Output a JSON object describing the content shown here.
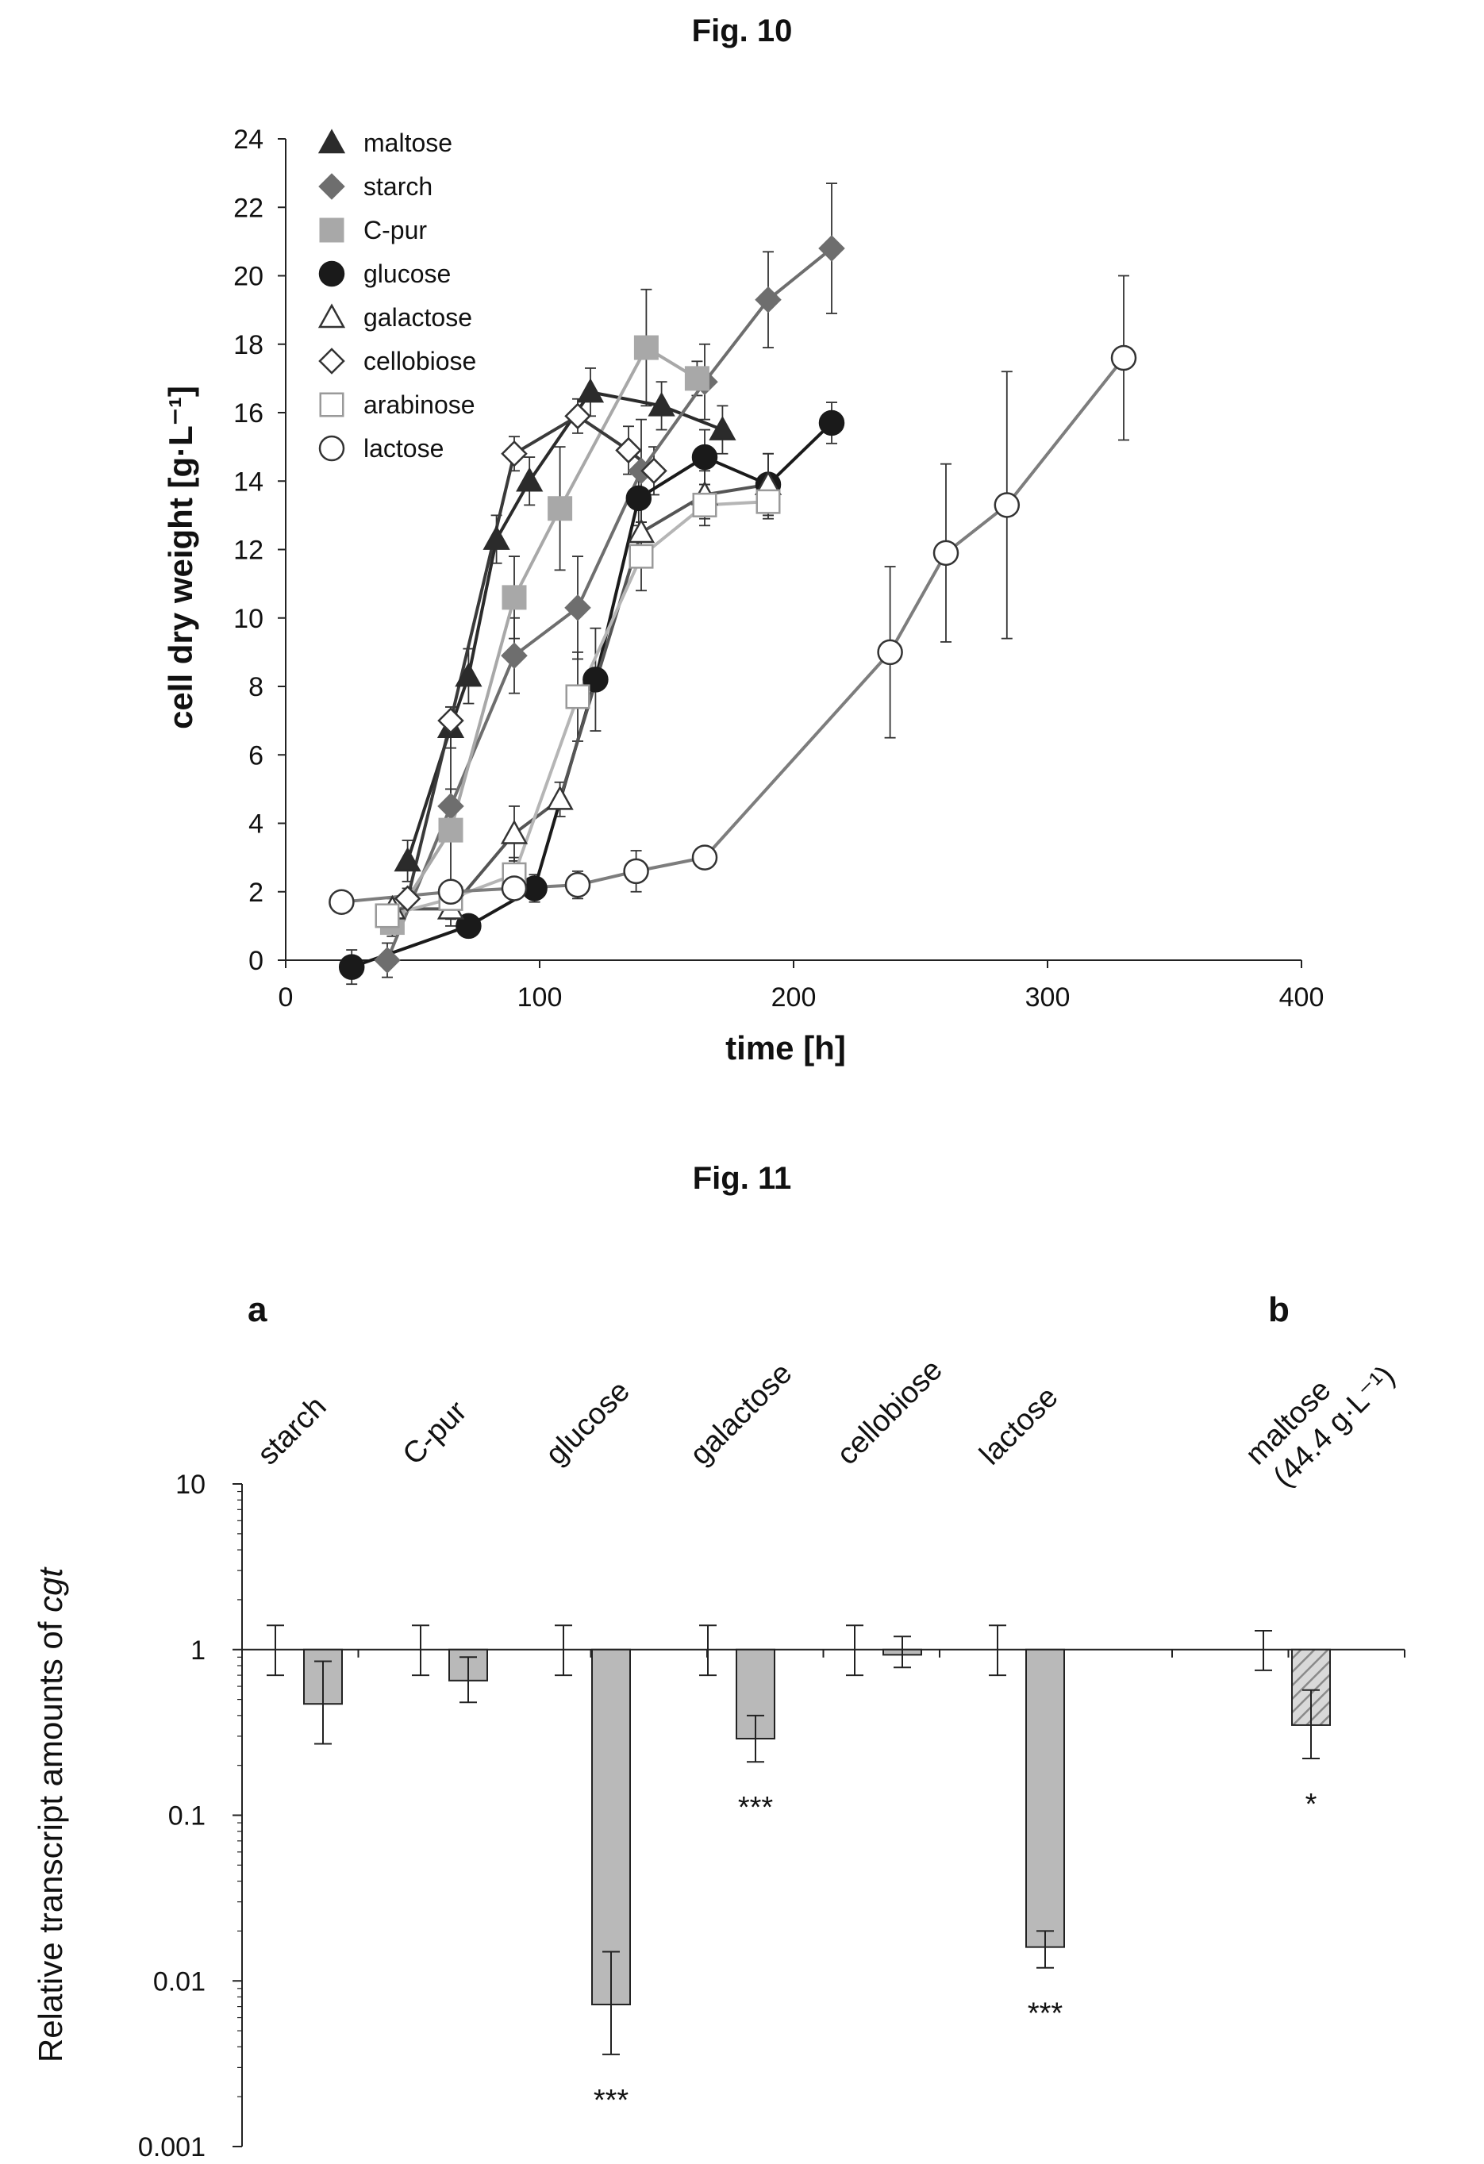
{
  "figures": [
    {
      "label": "Fig. 10"
    },
    {
      "label": "Fig. 11"
    }
  ],
  "chart_data": [
    {
      "type": "line",
      "title": "Fig. 10",
      "xlabel": "time [h]",
      "ylabel": "cell dry weight [g·L⁻¹]",
      "xlim": [
        0,
        400
      ],
      "ylim": [
        0,
        24
      ],
      "xticks": [
        0,
        100,
        200,
        300,
        400
      ],
      "yticks": [
        0,
        2,
        4,
        6,
        8,
        10,
        12,
        14,
        16,
        18,
        20,
        22,
        24
      ],
      "legend_position": "top-left",
      "series": [
        {
          "name": "maltose",
          "marker": "triangle-filled",
          "color": "#2b2b2b",
          "x": [
            48,
            65,
            72,
            83,
            96,
            120,
            148,
            172
          ],
          "y": [
            2.9,
            6.8,
            8.3,
            12.3,
            14.0,
            16.6,
            16.2,
            15.5
          ],
          "err": [
            0.6,
            0.6,
            0.8,
            0.7,
            0.7,
            0.7,
            0.7,
            0.7
          ]
        },
        {
          "name": "starch",
          "marker": "diamond-filled",
          "color": "#6e6e6e",
          "x": [
            40,
            65,
            90,
            115,
            140,
            165,
            190,
            215
          ],
          "y": [
            0.0,
            4.5,
            8.9,
            10.3,
            14.3,
            16.9,
            19.3,
            20.8
          ],
          "err": [
            0.5,
            0.5,
            1.1,
            1.5,
            1.5,
            1.1,
            1.4,
            1.9
          ]
        },
        {
          "name": "C-pur",
          "marker": "square-filled",
          "color": "#a8a8a8",
          "x": [
            42,
            65,
            90,
            108,
            142,
            162
          ],
          "y": [
            1.1,
            3.8,
            10.6,
            13.2,
            17.9,
            17.0
          ],
          "err": [
            0.4,
            2.8,
            1.2,
            1.8,
            1.7,
            0.5
          ]
        },
        {
          "name": "glucose",
          "marker": "circle-filled",
          "color": "#1a1a1a",
          "x": [
            26,
            72,
            98,
            122,
            139,
            165,
            190,
            215
          ],
          "y": [
            -0.2,
            1.0,
            2.1,
            8.2,
            13.5,
            14.7,
            13.9,
            15.7
          ],
          "err": [
            0.5,
            0.3,
            0.4,
            1.5,
            0.8,
            0.8,
            0.9,
            0.6
          ]
        },
        {
          "name": "galactose",
          "marker": "triangle-open",
          "color": "#555555",
          "x": [
            42,
            65,
            90,
            108,
            140,
            165,
            190
          ],
          "y": [
            1.5,
            1.5,
            3.7,
            4.7,
            12.5,
            13.6,
            13.9
          ],
          "err": [
            0.3,
            0.3,
            0.8,
            0.5,
            0.8,
            0.7,
            0.9
          ]
        },
        {
          "name": "cellobiose",
          "marker": "diamond-open",
          "color": "#3a3a3a",
          "x": [
            48,
            65,
            90,
            115,
            135,
            145
          ],
          "y": [
            1.8,
            7.0,
            14.8,
            15.9,
            14.9,
            14.3
          ],
          "err": [
            0.3,
            0.4,
            0.5,
            0.5,
            0.7,
            0.7
          ]
        },
        {
          "name": "arabinose",
          "marker": "square-open",
          "color": "#b5b5b5",
          "x": [
            40,
            65,
            90,
            115,
            140,
            165,
            190
          ],
          "y": [
            1.3,
            1.8,
            2.5,
            7.7,
            11.8,
            13.3,
            13.4
          ],
          "err": [
            0.3,
            0.3,
            0.5,
            1.3,
            1.0,
            0.6,
            0.5
          ]
        },
        {
          "name": "lactose",
          "marker": "circle-open",
          "color": "#7d7d7d",
          "x": [
            22,
            65,
            90,
            115,
            138,
            165,
            238,
            260,
            284,
            330
          ],
          "y": [
            1.7,
            2.0,
            2.1,
            2.2,
            2.6,
            3.0,
            9.0,
            11.9,
            13.3,
            17.6
          ],
          "err": [
            0.3,
            0.3,
            0.3,
            0.4,
            0.6,
            0.3,
            2.5,
            2.6,
            3.9,
            2.4
          ]
        }
      ]
    },
    {
      "type": "bar",
      "title": "Fig. 11",
      "ylabel": "Relative transcript amounts of cgt",
      "ylabel_parts": [
        "Relative transcript amounts of ",
        "cgt"
      ],
      "yscale": "log",
      "ylim": [
        0.001,
        10
      ],
      "yticks": [
        "10",
        "1",
        "0.1",
        "0.01",
        "0.001"
      ],
      "yticks_values": [
        10,
        1,
        0.1,
        0.01,
        0.001
      ],
      "baseline": 1,
      "panels": [
        "a",
        "b"
      ],
      "groups": [
        {
          "label": "starch",
          "panel": "a",
          "control_err": [
            0.7,
            1.4
          ],
          "value": 0.47,
          "err": [
            0.27,
            0.85
          ],
          "significance": "",
          "fill": "#b9b9b9"
        },
        {
          "label": "C-pur",
          "panel": "a",
          "control_err": [
            0.7,
            1.4
          ],
          "value": 0.65,
          "err": [
            0.48,
            0.9
          ],
          "significance": "",
          "fill": "#b9b9b9"
        },
        {
          "label": "glucose",
          "panel": "a",
          "control_err": [
            0.7,
            1.4
          ],
          "value": 0.0072,
          "err": [
            0.0036,
            0.015
          ],
          "significance": "***",
          "fill": "#b9b9b9"
        },
        {
          "label": "galactose",
          "panel": "a",
          "control_err": [
            0.7,
            1.4
          ],
          "value": 0.29,
          "err": [
            0.21,
            0.4
          ],
          "significance": "***",
          "fill": "#b9b9b9"
        },
        {
          "label": "cellobiose",
          "panel": "a",
          "control_err": [
            0.7,
            1.4
          ],
          "value": 0.93,
          "err": [
            0.78,
            1.2
          ],
          "significance": "",
          "fill": "#b9b9b9"
        },
        {
          "label": "lactose",
          "panel": "a",
          "control_err": [
            0.7,
            1.4
          ],
          "value": 0.016,
          "err": [
            0.012,
            0.02
          ],
          "significance": "***",
          "fill": "#b9b9b9"
        },
        {
          "label": "maltose",
          "label2": "(44.4 g·L⁻¹)",
          "panel": "b",
          "control_err": [
            0.75,
            1.3
          ],
          "value": 0.35,
          "err": [
            0.22,
            0.57
          ],
          "significance": "*",
          "fill": "hatched"
        }
      ]
    }
  ]
}
